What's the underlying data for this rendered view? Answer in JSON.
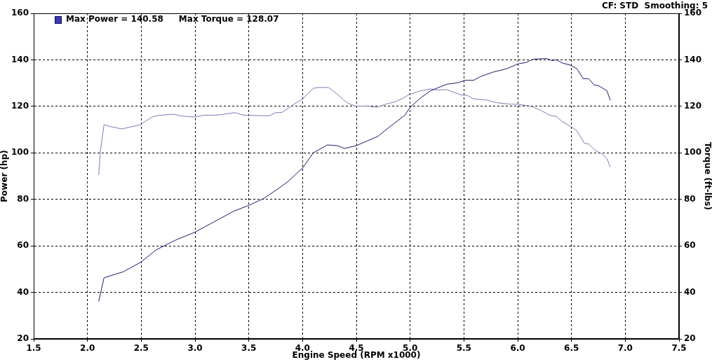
{
  "chart_data": {
    "type": "line",
    "xlabel": "Engine Speed (RPM x1000)",
    "ylabel": "Power (hp)",
    "y2label": "Torque (ft-lbs)",
    "annotations": [
      "CF: STD  Smoothing: 5",
      "Max Power = 140.58",
      "Max Torque = 128.07"
    ],
    "series": [
      {
        "color": "#1a1a6b",
        "x": [
          2.105,
          2.154,
          2.33,
          2.49,
          2.64,
          2.82,
          3.0,
          3.14,
          3.36,
          3.5,
          3.64,
          3.77,
          3.86,
          3.93,
          4.0,
          4.1,
          4.23,
          4.32,
          4.39,
          4.5,
          4.6,
          4.7,
          4.77,
          4.85,
          4.95,
          5.0,
          5.1,
          5.19,
          5.34,
          5.45,
          5.51,
          5.59,
          5.66,
          5.77,
          5.9,
          6.0,
          6.08,
          6.14,
          6.26,
          6.32,
          6.36,
          6.41,
          6.49,
          6.55,
          6.61,
          6.66,
          6.71,
          6.75,
          6.83,
          6.86
        ],
        "values": [
          36.2,
          46.3,
          48.8,
          52.8,
          58.3,
          62.5,
          65.9,
          69.4,
          74.9,
          77.4,
          80.4,
          84.5,
          87.5,
          90.5,
          93.5,
          100,
          103.4,
          103.1,
          101.9,
          103.1,
          105.1,
          107.1,
          109.7,
          112.6,
          116.1,
          119.6,
          123.7,
          126.7,
          129.5,
          130.2,
          131.2,
          131.2,
          132.9,
          134.7,
          136.2,
          138.2,
          138.9,
          140.2,
          140.6,
          139.7,
          140,
          138.7,
          137.7,
          136.2,
          131.9,
          131.9,
          129.2,
          128.9,
          126.7,
          122.7
        ]
      },
      {
        "color": "#7c7cb4",
        "axis": "y2",
        "x": [
          2.105,
          2.12,
          2.154,
          2.23,
          2.32,
          2.38,
          2.49,
          2.6,
          2.66,
          2.8,
          2.88,
          3.0,
          3.08,
          3.19,
          3.27,
          3.37,
          3.45,
          3.69,
          3.75,
          3.81,
          3.93,
          4.0,
          4.1,
          4.14,
          4.24,
          4.31,
          4.41,
          4.49,
          4.6,
          4.69,
          4.77,
          4.86,
          4.93,
          4.99,
          5.1,
          5.19,
          5.25,
          5.34,
          5.47,
          5.53,
          5.59,
          5.71,
          5.8,
          5.93,
          6.0,
          6.12,
          6.21,
          6.3,
          6.36,
          6.41,
          6.5,
          6.55,
          6.62,
          6.66,
          6.72,
          6.78,
          6.83,
          6.86
        ],
        "values": [
          90.5,
          100.5,
          112.1,
          111.1,
          110.3,
          110.9,
          112.1,
          115.4,
          116.1,
          116.6,
          115.8,
          115.4,
          116.2,
          116.2,
          116.6,
          117.3,
          116.2,
          115.9,
          117.3,
          117.4,
          121.2,
          123.2,
          127.7,
          128.1,
          128.1,
          125.7,
          121.6,
          120.1,
          120.1,
          119.6,
          120.9,
          121.9,
          123.4,
          125.0,
          126.7,
          127.5,
          127.0,
          127.2,
          124.9,
          124.7,
          123.2,
          122.7,
          121.6,
          120.9,
          120.9,
          120.1,
          118.4,
          116.1,
          115.6,
          113.6,
          111.1,
          109.6,
          104.1,
          103.8,
          101.0,
          99.7,
          97.5,
          94.0
        ]
      }
    ],
    "xlim": [
      1.5,
      7.5
    ],
    "xticks": [
      {
        "value": 1.5,
        "label": "1.5"
      },
      {
        "value": 2,
        "label": "2.0"
      },
      {
        "value": 2.5,
        "label": "2.5"
      },
      {
        "value": 3,
        "label": "3.0"
      },
      {
        "value": 3.5,
        "label": "3.5"
      },
      {
        "value": 4,
        "label": "4.0"
      },
      {
        "value": 4.5,
        "label": "4.5"
      },
      {
        "value": 5,
        "label": "5.0"
      },
      {
        "value": 5.5,
        "label": "5.5"
      },
      {
        "value": 6,
        "label": "6.0"
      },
      {
        "value": 6.5,
        "label": "6.5"
      },
      {
        "value": 7,
        "label": "7.0"
      },
      {
        "value": 7.5,
        "label": "7.5"
      }
    ],
    "ylim": [
      20,
      160
    ],
    "yticks": [
      20,
      40,
      60,
      80,
      100,
      120,
      140,
      160
    ],
    "y2lim": [
      20,
      160
    ],
    "y2ticks": [
      20,
      40,
      60,
      80,
      100,
      120,
      140,
      160
    ],
    "grid": true,
    "line_style": "solid",
    "marker": "none"
  }
}
